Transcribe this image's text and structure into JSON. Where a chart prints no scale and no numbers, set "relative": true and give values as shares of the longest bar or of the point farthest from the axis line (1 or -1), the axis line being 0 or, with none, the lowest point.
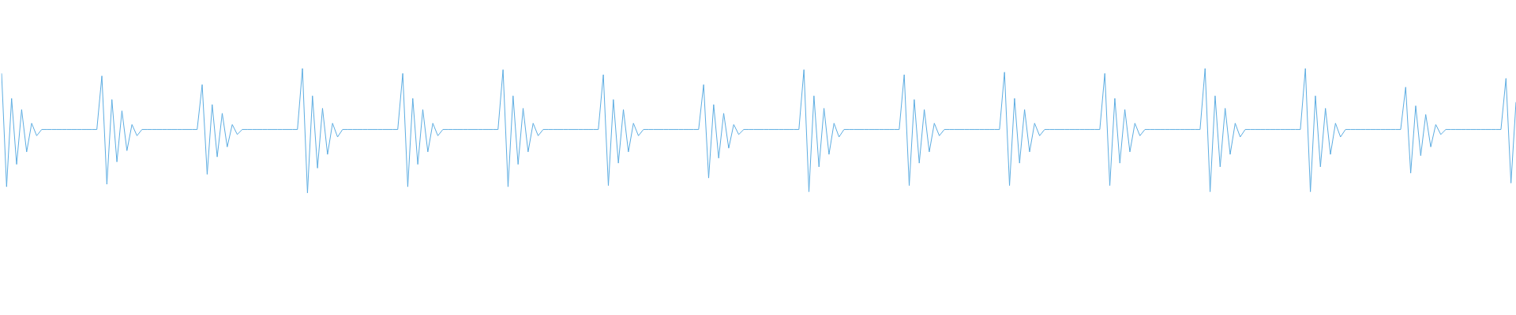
{
  "chart_data": {
    "type": "line",
    "relative": true,
    "grid": false,
    "legend": false,
    "marker": "none",
    "line_style": "solid",
    "categories": [
      null,
      null,
      null,
      null,
      null,
      null,
      null,
      null,
      null,
      null,
      null,
      null,
      null,
      null,
      null,
      null,
      null,
      null,
      null,
      null,
      null,
      null,
      null,
      null,
      null,
      null,
      null,
      null,
      null,
      null,
      null,
      null,
      null,
      null,
      null,
      null,
      null,
      null,
      null,
      null,
      null,
      null,
      null,
      null,
      null,
      null,
      null,
      null,
      null,
      null,
      null,
      null,
      null,
      null,
      null,
      null,
      null,
      null,
      null,
      null,
      null,
      null,
      null,
      null,
      null,
      null,
      null,
      null,
      null,
      null,
      null,
      null,
      null,
      null,
      null,
      null,
      null,
      null,
      null,
      null,
      null,
      null,
      null,
      null,
      null,
      null,
      null,
      null,
      null,
      null,
      null,
      null,
      null,
      null,
      null,
      null,
      null,
      null,
      null,
      null,
      null,
      null,
      null,
      null,
      null,
      null,
      null,
      null,
      null,
      null,
      null,
      null,
      null,
      null,
      null,
      null,
      null,
      null,
      null,
      null,
      null,
      null,
      null,
      null,
      null,
      null,
      null,
      null,
      null,
      null,
      null,
      null,
      null,
      null,
      null,
      null,
      null,
      null,
      null,
      null,
      null,
      null,
      null,
      null,
      null,
      null,
      null,
      null,
      null,
      null,
      null,
      null,
      null,
      null,
      null,
      null,
      null,
      null,
      null,
      null,
      null,
      null,
      null,
      null,
      null,
      null,
      null,
      null,
      null,
      null,
      null,
      null,
      null,
      null,
      null,
      null,
      null,
      null,
      null,
      null,
      null,
      null,
      null,
      null,
      null,
      null,
      null,
      null,
      null,
      null,
      null,
      null,
      null,
      null,
      null,
      null,
      null,
      null,
      null,
      null,
      null,
      null,
      null,
      null,
      null,
      null,
      null,
      null,
      null,
      null,
      null,
      null,
      null,
      null,
      null,
      null,
      null,
      null,
      null,
      null,
      null,
      null,
      null,
      null,
      null,
      null,
      null,
      null,
      null,
      null,
      null,
      null,
      null,
      null,
      null,
      null,
      null,
      null,
      null,
      null,
      null,
      null,
      null,
      null,
      null,
      null,
      null,
      null,
      null,
      null,
      null,
      null,
      null,
      null,
      null,
      null,
      null,
      null,
      null,
      null,
      null,
      null,
      null,
      null,
      null,
      null,
      null,
      null,
      null,
      null,
      null,
      null,
      null,
      null,
      null,
      null,
      null,
      null,
      null,
      null,
      null,
      null,
      null,
      null,
      null,
      null,
      null,
      null,
      null,
      null,
      null,
      null,
      null,
      null,
      null,
      null,
      null,
      null,
      null,
      null,
      null,
      null,
      null
    ],
    "series": [
      {
        "color": "#5dade2",
        "values": [
          0.96,
          0.05,
          0.76,
          0.23,
          0.67,
          0.33,
          0.56,
          0.46,
          0.51,
          0.51,
          0.51,
          0.51,
          0.51,
          0.51,
          0.51,
          0.51,
          0.51,
          0.51,
          0.51,
          0.51,
          0.94,
          0.07,
          0.75,
          0.25,
          0.66,
          0.34,
          0.55,
          0.46,
          0.51,
          0.51,
          0.51,
          0.51,
          0.51,
          0.51,
          0.51,
          0.51,
          0.51,
          0.51,
          0.51,
          0.51,
          0.87,
          0.15,
          0.71,
          0.29,
          0.64,
          0.37,
          0.55,
          0.47,
          0.51,
          0.51,
          0.51,
          0.51,
          0.51,
          0.51,
          0.51,
          0.51,
          0.51,
          0.51,
          0.51,
          0.51,
          1,
          0,
          0.78,
          0.2,
          0.68,
          0.31,
          0.56,
          0.45,
          0.51,
          0.51,
          0.51,
          0.51,
          0.51,
          0.51,
          0.51,
          0.51,
          0.51,
          0.51,
          0.51,
          0.51,
          0.96,
          0.05,
          0.76,
          0.23,
          0.67,
          0.33,
          0.56,
          0.46,
          0.51,
          0.51,
          0.51,
          0.51,
          0.51,
          0.51,
          0.51,
          0.51,
          0.51,
          0.51,
          0.51,
          0.51,
          0.99,
          0.05,
          0.78,
          0.23,
          0.68,
          0.33,
          0.56,
          0.46,
          0.51,
          0.51,
          0.51,
          0.51,
          0.51,
          0.51,
          0.51,
          0.51,
          0.51,
          0.51,
          0.51,
          0.51,
          0.95,
          0.06,
          0.75,
          0.24,
          0.67,
          0.33,
          0.56,
          0.46,
          0.51,
          0.51,
          0.51,
          0.51,
          0.51,
          0.51,
          0.51,
          0.51,
          0.51,
          0.51,
          0.51,
          0.51,
          0.87,
          0.12,
          0.71,
          0.28,
          0.64,
          0.36,
          0.55,
          0.47,
          0.51,
          0.51,
          0.51,
          0.51,
          0.51,
          0.51,
          0.51,
          0.51,
          0.51,
          0.51,
          0.51,
          0.51,
          0.99,
          0.01,
          0.78,
          0.21,
          0.68,
          0.31,
          0.56,
          0.45,
          0.51,
          0.51,
          0.51,
          0.51,
          0.51,
          0.51,
          0.51,
          0.51,
          0.51,
          0.51,
          0.51,
          0.51,
          0.95,
          0.06,
          0.75,
          0.24,
          0.67,
          0.33,
          0.56,
          0.46,
          0.51,
          0.51,
          0.51,
          0.51,
          0.51,
          0.51,
          0.51,
          0.51,
          0.51,
          0.51,
          0.51,
          0.51,
          0.97,
          0.06,
          0.76,
          0.24,
          0.67,
          0.33,
          0.56,
          0.46,
          0.51,
          0.51,
          0.51,
          0.51,
          0.51,
          0.51,
          0.51,
          0.51,
          0.51,
          0.51,
          0.51,
          0.51,
          0.96,
          0.06,
          0.76,
          0.24,
          0.67,
          0.33,
          0.56,
          0.46,
          0.51,
          0.51,
          0.51,
          0.51,
          0.51,
          0.51,
          0.51,
          0.51,
          0.51,
          0.51,
          0.51,
          0.51,
          1,
          0.01,
          0.78,
          0.21,
          0.68,
          0.31,
          0.56,
          0.45,
          0.51,
          0.51,
          0.51,
          0.51,
          0.51,
          0.51,
          0.51,
          0.51,
          0.51,
          0.51,
          0.51,
          0.51,
          1,
          0.01,
          0.78,
          0.21,
          0.68,
          0.31,
          0.56,
          0.45,
          0.51,
          0.51,
          0.51,
          0.51,
          0.51,
          0.51,
          0.51,
          0.51,
          0.51,
          0.51,
          0.51,
          0.51,
          0.85,
          0.16,
          0.7,
          0.3,
          0.63,
          0.37,
          0.55,
          0.47,
          0.51,
          0.51,
          0.51,
          0.51,
          0.51,
          0.51,
          0.51,
          0.51,
          0.51,
          0.51,
          0.51,
          0.51,
          0.92,
          0.08,
          0.73
        ]
      }
    ]
  }
}
